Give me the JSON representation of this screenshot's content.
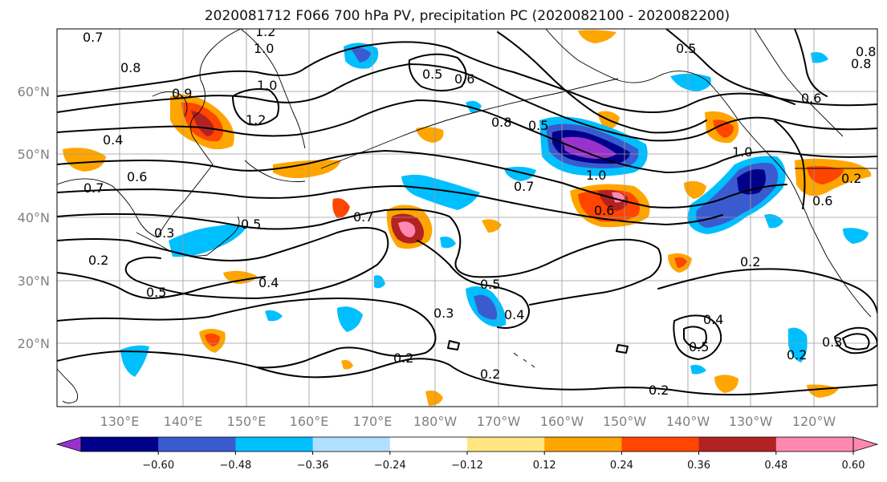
{
  "title": "2020081712 F066 700 hPa PV, precipitation PC (2020082100 - 2020082200)",
  "map": {
    "lat_labels": [
      "60°N",
      "50°N",
      "40°N",
      "30°N",
      "20°N"
    ],
    "lon_labels": [
      "130°E",
      "140°E",
      "150°E",
      "160°E",
      "170°E",
      "180°W",
      "170°W",
      "160°W",
      "150°W",
      "140°W",
      "130°W",
      "120°W"
    ],
    "contour_labels": [
      "0.7",
      "1.2",
      "1.0",
      "0.8",
      "1.0",
      "1.2",
      "0.9",
      "0.4",
      "0.6",
      "0.7",
      "0.5",
      "0.6",
      "0.8",
      "0.5",
      "0.5",
      "0.8",
      "0.6",
      "1.0",
      "0.7",
      "0.6",
      "1.0",
      "0.3",
      "0.5",
      "0.2",
      "0.7",
      "0.4",
      "0.5",
      "0.2",
      "0.4",
      "0.5",
      "0.3",
      "0.2",
      "0.2",
      "0.2",
      "0.4",
      "0.5",
      "0.3",
      "0.2",
      "0.6",
      "0.2",
      "0.8"
    ]
  },
  "colorbar": {
    "tick_labels": [
      "−0.60",
      "−0.48",
      "−0.36",
      "−0.24",
      "−0.12",
      "0.12",
      "0.24",
      "0.36",
      "0.48",
      "0.60"
    ],
    "colors": [
      "#9932cc",
      "#00008b",
      "#3a5bd0",
      "#00bfff",
      "#b0e0ff",
      "#ffffff",
      "#ffe680",
      "#ffa500",
      "#ff4500",
      "#b22222",
      "#ff88b0",
      "#ff88b0"
    ]
  },
  "colors": {
    "pc_neg_light": "#b0e0ff",
    "pc_neg_mid": "#00bfff",
    "pc_neg_strong": "#3a5bd0",
    "pc_neg_max": "#00008b",
    "pc_neg_extreme": "#9932cc",
    "pc_pos_light": "#ffe680",
    "pc_pos_mid": "#ffa500",
    "pc_pos_strong": "#ff4500",
    "pc_pos_max": "#b22222",
    "pc_pos_extreme": "#ff88b0",
    "contour": "#000000"
  }
}
